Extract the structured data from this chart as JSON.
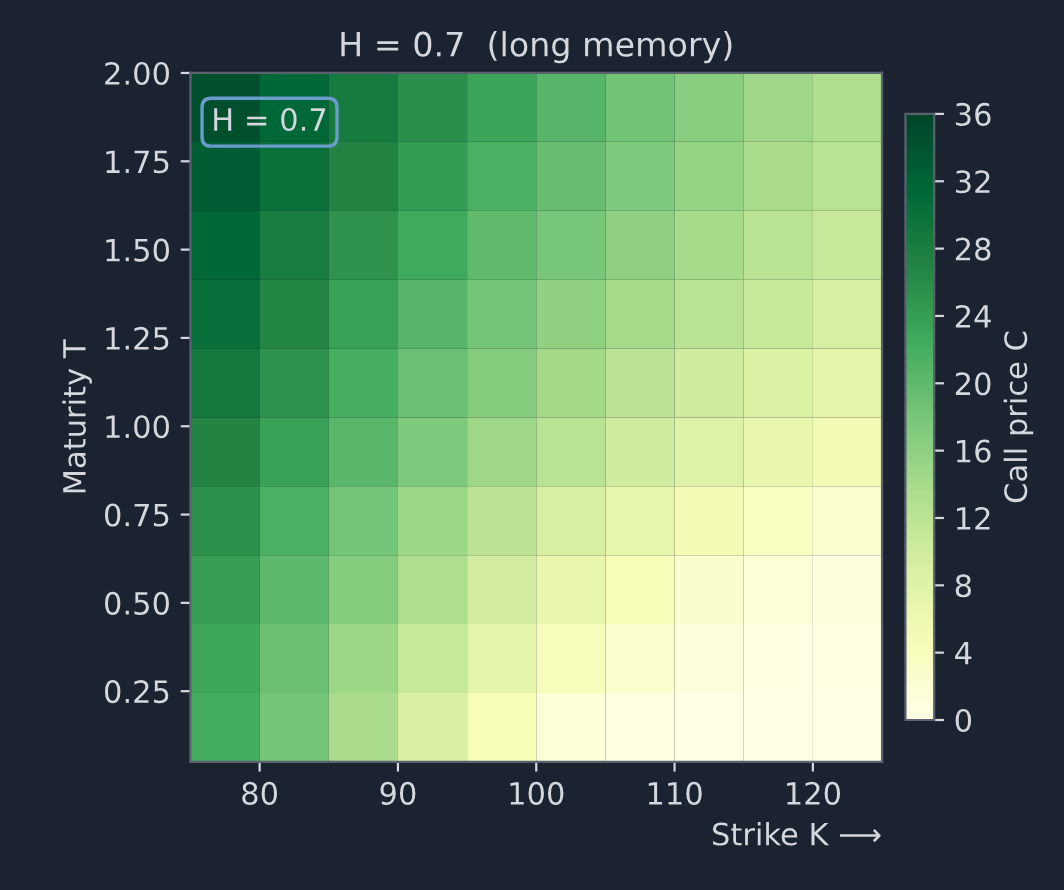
{
  "chart_data": {
    "type": "heatmap",
    "title": "H = 0.7  (long memory)",
    "xlabel": "Strike K ⟶",
    "ylabel": "Maturity T",
    "clabel": "Call price C",
    "annotations": [
      "H = 0.7"
    ],
    "x": [
      77.5,
      82.5,
      87.5,
      92.5,
      97.5,
      102.5,
      107.5,
      112.5,
      117.5,
      122.5
    ],
    "y": [
      1.9025,
      1.7075,
      1.5125,
      1.3175,
      1.1225,
      0.9275,
      0.7325,
      0.5375,
      0.3425,
      0.1475
    ],
    "cells": [
      [
        34.5,
        31.5,
        28.5,
        25.75,
        23.25,
        20.75,
        18.5,
        16.5,
        14.75,
        13.25
      ],
      [
        33,
        30,
        27,
        24.25,
        21.75,
        19.5,
        17.5,
        15.5,
        13.75,
        12.25
      ],
      [
        31.5,
        28.25,
        25.25,
        22.5,
        20,
        18,
        16,
        14,
        12.25,
        10.75
      ],
      [
        30.25,
        26.75,
        23.5,
        20.75,
        18.25,
        16,
        14,
        12.25,
        10.75,
        9.25
      ],
      [
        28.75,
        25.25,
        22,
        19.25,
        16.75,
        14.25,
        12,
        10.25,
        8.75,
        7.25
      ],
      [
        27,
        23.5,
        20.5,
        17.5,
        14.75,
        12.25,
        10,
        8.25,
        6.75,
        5.25
      ],
      [
        25.5,
        21.75,
        18.25,
        15,
        12,
        9.25,
        7,
        5.1,
        3.6,
        2.5
      ],
      [
        24,
        20.25,
        16.75,
        13.25,
        9.75,
        6.75,
        4.5,
        2.75,
        1.6,
        0.9
      ],
      [
        23,
        19,
        15,
        11,
        7.25,
        4.25,
        2.25,
        1.05,
        0.4,
        0.15
      ],
      [
        22.25,
        18.25,
        13.75,
        9,
        4.5,
        1.65,
        0.5,
        0.1,
        0,
        0
      ]
    ],
    "xlim": [
      75,
      125
    ],
    "xticks": [
      80,
      90,
      100,
      110,
      120
    ],
    "ylim": [
      0.05,
      2.0
    ],
    "yticks": [
      {
        "value": 0.25,
        "label": "0.25"
      },
      {
        "value": 0.5,
        "label": "0.50"
      },
      {
        "value": 0.75,
        "label": "0.75"
      },
      {
        "value": 1.0,
        "label": "1.00"
      },
      {
        "value": 1.25,
        "label": "1.25"
      },
      {
        "value": 1.5,
        "label": "1.50"
      },
      {
        "value": 1.75,
        "label": "1.75"
      },
      {
        "value": 2.0,
        "label": "2.00"
      }
    ],
    "clim": [
      0,
      36
    ],
    "cticks": [
      0,
      4,
      8,
      12,
      16,
      20,
      24,
      28,
      32,
      36
    ],
    "grid": false
  }
}
